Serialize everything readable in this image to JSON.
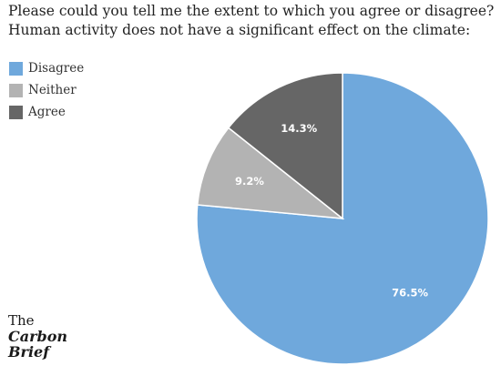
{
  "title_lines": [
    "Please could you tell me the extent to which you agree or disagree?",
    "Human activity does not have a significant effect on the climate:"
  ],
  "logo": {
    "line1": "The",
    "line2": "Carbon",
    "line3": "Brief"
  },
  "chart_data": {
    "type": "pie",
    "title": "Please could you tell me the extent to which you agree or disagree? Human activity does not have a significant effect on the climate:",
    "start_angle_deg": 0,
    "direction": "clockwise",
    "legend_position": "top-left",
    "slices": [
      {
        "name": "Disagree",
        "value": 76.5,
        "label": "76.5%",
        "color": "#6fa8dc"
      },
      {
        "name": "Neither",
        "value": 9.2,
        "label": "9.2%",
        "color": "#b3b3b3"
      },
      {
        "name": "Agree",
        "value": 14.3,
        "label": "14.3%",
        "color": "#666666"
      }
    ]
  }
}
